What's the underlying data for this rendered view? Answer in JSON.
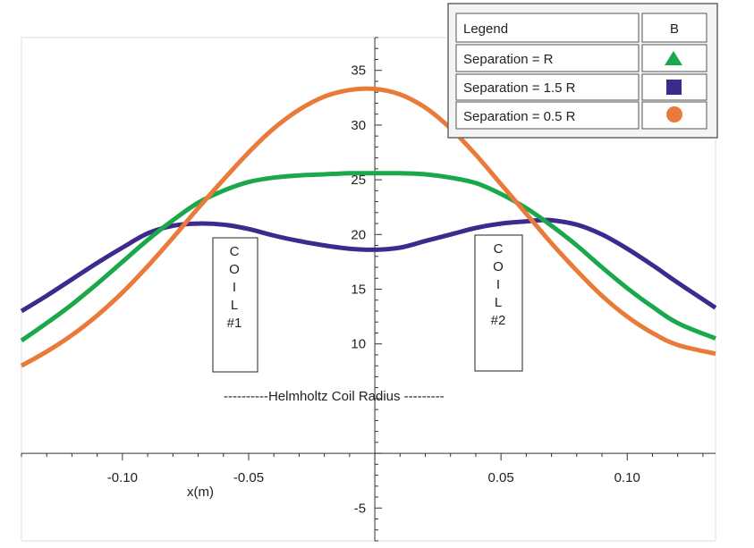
{
  "chart_data": {
    "type": "line",
    "title": "",
    "xlabel": "x(m)",
    "ylabel": "",
    "xlim": [
      -0.14,
      0.135
    ],
    "ylim": [
      -8,
      38
    ],
    "grid": false,
    "legend_position": "top-right",
    "x_ticks": [
      {
        "value": -0.1,
        "label": "-0.10"
      },
      {
        "value": -0.05,
        "label": "-0.05"
      },
      {
        "value": 0.05,
        "label": "0.05"
      },
      {
        "value": 0.1,
        "label": "0.10"
      }
    ],
    "y_ticks": [
      {
        "value": 35,
        "label": "35"
      },
      {
        "value": 30,
        "label": "30"
      },
      {
        "value": 25,
        "label": "25"
      },
      {
        "value": 20,
        "label": "20"
      },
      {
        "value": 15,
        "label": "15"
      },
      {
        "value": 10,
        "label": "10"
      },
      {
        "value": -5,
        "label": "-5"
      }
    ],
    "legend": {
      "header": "Legend",
      "column_header": "B",
      "entries": [
        {
          "label": "Separation = R",
          "marker": "triangle",
          "color": "#1aa84b"
        },
        {
          "label": "Separation = 1.5 R",
          "marker": "square",
          "color": "#3d2a8c"
        },
        {
          "label": "Separation = 0.5 R",
          "marker": "circle",
          "color": "#ea7a3a"
        }
      ]
    },
    "annotations": {
      "coil1": {
        "lines": [
          "C",
          "O",
          "I",
          "L",
          "#1"
        ]
      },
      "coil2": {
        "lines": [
          "C",
          "O",
          "I",
          "L",
          "#2"
        ]
      },
      "radius": "----------Helmholtz Coil Radius ---------"
    },
    "series": [
      {
        "name": "Separation = 1.5 R",
        "color": "#3d2a8c",
        "x": [
          -0.14,
          -0.13,
          -0.12,
          -0.11,
          -0.1,
          -0.09,
          -0.08,
          -0.07,
          -0.06,
          -0.05,
          -0.04,
          -0.03,
          -0.02,
          -0.01,
          0,
          0.01,
          0.02,
          0.03,
          0.04,
          0.05,
          0.06,
          0.065,
          0.07,
          0.08,
          0.09,
          0.1,
          0.11,
          0.12,
          0.135
        ],
        "y": [
          13.0,
          14.4,
          15.9,
          17.4,
          18.8,
          20.1,
          20.8,
          21.0,
          20.9,
          20.5,
          19.9,
          19.4,
          19.0,
          18.7,
          18.6,
          18.8,
          19.4,
          20.0,
          20.6,
          21.0,
          21.2,
          21.3,
          21.3,
          20.9,
          20.0,
          18.7,
          17.2,
          15.6,
          13.3
        ]
      },
      {
        "name": "Separation = R",
        "color": "#1aa84b",
        "x": [
          -0.14,
          -0.13,
          -0.12,
          -0.11,
          -0.1,
          -0.09,
          -0.08,
          -0.07,
          -0.06,
          -0.05,
          -0.04,
          -0.03,
          -0.02,
          -0.01,
          0,
          0.01,
          0.02,
          0.03,
          0.04,
          0.05,
          0.06,
          0.07,
          0.08,
          0.09,
          0.1,
          0.11,
          0.12,
          0.135
        ],
        "y": [
          10.3,
          11.9,
          13.6,
          15.5,
          17.5,
          19.5,
          21.3,
          22.9,
          24.0,
          24.8,
          25.2,
          25.4,
          25.5,
          25.6,
          25.6,
          25.6,
          25.5,
          25.2,
          24.7,
          23.7,
          22.4,
          20.8,
          19.0,
          17.0,
          15.1,
          13.4,
          11.9,
          10.5
        ]
      },
      {
        "name": "Separation = 0.5 R",
        "color": "#ea7a3a",
        "x": [
          -0.14,
          -0.13,
          -0.12,
          -0.11,
          -0.1,
          -0.09,
          -0.08,
          -0.07,
          -0.06,
          -0.05,
          -0.04,
          -0.03,
          -0.02,
          -0.01,
          0,
          0.01,
          0.02,
          0.03,
          0.04,
          0.05,
          0.06,
          0.07,
          0.08,
          0.09,
          0.1,
          0.11,
          0.12,
          0.135
        ],
        "y": [
          8.0,
          9.3,
          10.8,
          12.6,
          14.7,
          17.1,
          19.7,
          22.4,
          25.0,
          27.5,
          29.7,
          31.4,
          32.6,
          33.2,
          33.3,
          32.8,
          31.6,
          29.7,
          27.3,
          24.6,
          21.9,
          19.2,
          16.7,
          14.4,
          12.5,
          11.0,
          9.9,
          9.1
        ]
      }
    ]
  }
}
